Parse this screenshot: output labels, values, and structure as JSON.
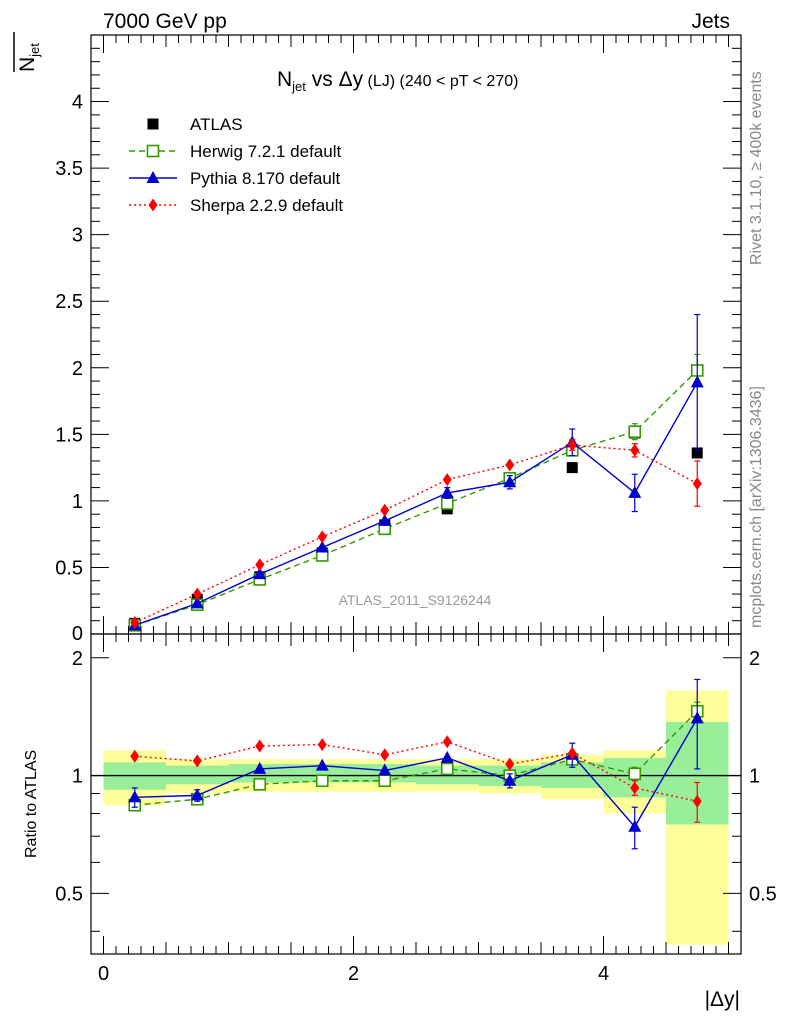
{
  "header": {
    "left": "7000 GeV pp",
    "right": "Jets"
  },
  "side_labels": {
    "rivet": "Rivet 3.1.10, ≥ 400k events",
    "mcplots": "mcplots.cern.ch [arXiv:1306.3436]"
  },
  "chart_data": {
    "type": "scatter",
    "title": {
      "main": "N",
      "sub": "jet",
      "rest": " vs Δy",
      "small": " (LJ) (240 < pT < 270)"
    },
    "ylabel": {
      "main": "N",
      "sub": "jet"
    },
    "ratio_ylabel": "Ratio to ATLAS",
    "xlabel": "|Δy|",
    "watermark": "ATLAS_2011_S9126244",
    "xlim": [
      -0.1,
      5.1
    ],
    "ylim": [
      0,
      4.5
    ],
    "ratio_ylim": [
      0.35,
      2.3
    ],
    "x_ticks": [
      "0",
      "2",
      "4"
    ],
    "y_ticks": [
      "0",
      "0.5",
      "1",
      "1.5",
      "2",
      "2.5",
      "3",
      "3.5",
      "4"
    ],
    "ratio_y_ticks": [
      "0.5",
      "1",
      "2"
    ],
    "x": [
      0.25,
      0.75,
      1.25,
      1.75,
      2.25,
      2.75,
      3.25,
      3.75,
      4.25,
      4.75
    ],
    "bins": [
      [
        0,
        0.5
      ],
      [
        0.5,
        1
      ],
      [
        1,
        1.5
      ],
      [
        1.5,
        2
      ],
      [
        2,
        2.5
      ],
      [
        2.5,
        3
      ],
      [
        3,
        3.5
      ],
      [
        3.5,
        4
      ],
      [
        4,
        4.5
      ],
      [
        4.5,
        5
      ]
    ],
    "band_stat_low": [
      0.92,
      0.95,
      0.96,
      0.96,
      0.96,
      0.95,
      0.94,
      0.93,
      0.88,
      0.75
    ],
    "band_stat_high": [
      1.08,
      1.06,
      1.07,
      1.07,
      1.07,
      1.06,
      1.06,
      1.08,
      1.11,
      1.37
    ],
    "band_tot_low": [
      0.84,
      0.9,
      0.91,
      0.91,
      0.91,
      0.91,
      0.9,
      0.87,
      0.8,
      0.37
    ],
    "band_tot_high": [
      1.16,
      1.1,
      1.1,
      1.1,
      1.1,
      1.1,
      1.1,
      1.13,
      1.16,
      1.65
    ],
    "series": [
      {
        "name": "ATLAS",
        "color": "#000000",
        "marker": "square-filled",
        "line": "none",
        "values": [
          0.08,
          0.26,
          0.43,
          0.61,
          0.82,
          0.94,
          1.17,
          1.25,
          1.51,
          1.36
        ],
        "ratio": [
          1,
          1,
          1,
          1,
          1,
          1,
          1,
          1,
          1,
          1
        ]
      },
      {
        "name": "Herwig 7.2.1 default",
        "color": "#339900",
        "marker": "square-open",
        "line": "dashed",
        "values": [
          0.065,
          0.22,
          0.41,
          0.59,
          0.79,
          0.98,
          1.17,
          1.38,
          1.52,
          1.98
        ],
        "errors": [
          0.005,
          0.01,
          0.01,
          0.01,
          0.02,
          0.02,
          0.03,
          0.04,
          0.06,
          0.12
        ],
        "ratio": [
          0.84,
          0.87,
          0.95,
          0.97,
          0.97,
          1.04,
          1.0,
          1.1,
          1.01,
          1.46
        ],
        "ratio_errors": [
          0.02,
          0.02,
          0.02,
          0.02,
          0.02,
          0.03,
          0.03,
          0.03,
          0.04,
          0.08
        ]
      },
      {
        "name": "Pythia 8.170 default",
        "color": "#0000cc",
        "marker": "triangle",
        "line": "solid",
        "values": [
          0.065,
          0.23,
          0.45,
          0.65,
          0.85,
          1.06,
          1.14,
          1.44,
          1.06,
          1.89
        ],
        "errors": [
          0.01,
          0.02,
          0.02,
          0.03,
          0.03,
          0.04,
          0.05,
          0.1,
          0.14,
          0.51
        ],
        "ratio": [
          0.88,
          0.89,
          1.04,
          1.06,
          1.03,
          1.11,
          0.97,
          1.13,
          0.74,
          1.4
        ],
        "ratio_errors": [
          0.05,
          0.03,
          0.03,
          0.03,
          0.03,
          0.03,
          0.04,
          0.08,
          0.09,
          0.36
        ]
      },
      {
        "name": "Sherpa 2.2.9 default",
        "color": "#ff0000",
        "marker": "diamond",
        "line": "dotted",
        "values": [
          0.085,
          0.3,
          0.52,
          0.73,
          0.93,
          1.16,
          1.27,
          1.42,
          1.38,
          1.13
        ],
        "errors": [
          0.005,
          0.01,
          0.01,
          0.02,
          0.02,
          0.02,
          0.03,
          0.04,
          0.05,
          0.17
        ],
        "ratio": [
          1.12,
          1.09,
          1.19,
          1.2,
          1.13,
          1.22,
          1.07,
          1.14,
          0.93,
          0.86
        ],
        "ratio_errors": [
          0.02,
          0.02,
          0.02,
          0.02,
          0.02,
          0.02,
          0.02,
          0.03,
          0.04,
          0.1
        ]
      }
    ]
  }
}
